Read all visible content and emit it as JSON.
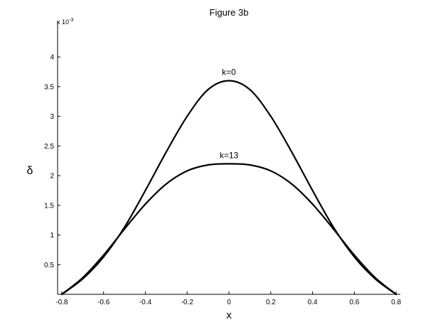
{
  "chart_data": {
    "type": "line",
    "title": "Figure 3b",
    "xlabel": "x",
    "ylabel": "δ",
    "y_multiplier_label": "x 10",
    "y_multiplier_exponent": "-3",
    "xlim": [
      -0.82,
      0.82
    ],
    "ylim": [
      0,
      4.6
    ],
    "x_ticks": [
      -0.8,
      -0.6,
      -0.4,
      -0.2,
      0,
      0.2,
      0.4,
      0.6,
      0.8
    ],
    "x_tick_labels": [
      "-0.8",
      "-0.6",
      "-0.4",
      "-0.2",
      "0",
      "0.2",
      "0.4",
      "0.6",
      "0.8"
    ],
    "y_ticks": [
      0.5,
      1,
      1.5,
      2,
      2.5,
      3,
      3.5,
      4
    ],
    "y_tick_labels": [
      "0.5",
      "1",
      "1.5",
      "2",
      "2.5",
      "3",
      "3.5",
      "4"
    ],
    "grid": false,
    "series": [
      {
        "name": "k=0",
        "x": [
          -0.8,
          -0.7,
          -0.6,
          -0.5,
          -0.4,
          -0.3,
          -0.2,
          -0.1,
          0,
          0.1,
          0.2,
          0.3,
          0.4,
          0.5,
          0.6,
          0.7,
          0.8
        ],
        "y": [
          0,
          0.26,
          0.63,
          1.13,
          1.75,
          2.4,
          3.0,
          3.45,
          3.6,
          3.45,
          3.0,
          2.4,
          1.75,
          1.13,
          0.63,
          0.26,
          0
        ]
      },
      {
        "name": "k=13",
        "x": [
          -0.8,
          -0.7,
          -0.6,
          -0.5,
          -0.4,
          -0.3,
          -0.2,
          -0.1,
          0,
          0.1,
          0.2,
          0.3,
          0.4,
          0.5,
          0.6,
          0.7,
          0.8
        ],
        "y": [
          0,
          0.28,
          0.66,
          1.1,
          1.52,
          1.86,
          2.08,
          2.18,
          2.2,
          2.18,
          2.08,
          1.86,
          1.52,
          1.1,
          0.66,
          0.28,
          0
        ]
      }
    ],
    "annotations": [
      {
        "text": "k=0",
        "x": 0,
        "y": 3.6
      },
      {
        "text": "k=13",
        "x": 0,
        "y": 2.2
      }
    ]
  }
}
